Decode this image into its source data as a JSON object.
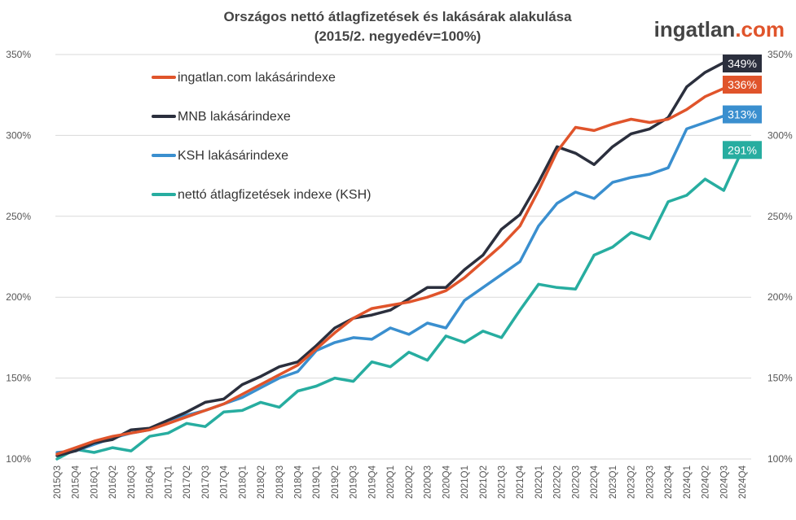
{
  "chart_data": {
    "type": "line",
    "title": "Országos nettó átlagfizetések és lakásárak alakulása",
    "subtitle": "(2015/2.  negyedév=100%)",
    "brand": {
      "name": "ingatlan",
      "suffix": ".com"
    },
    "colors": {
      "brand": "#444444",
      "accent": "#E0542B",
      "grid": "#d9d9d9"
    },
    "ylim": [
      100,
      350
    ],
    "yticks": [
      100,
      150,
      200,
      250,
      300,
      350
    ],
    "ytick_labels": [
      "100%",
      "150%",
      "200%",
      "250%",
      "300%",
      "350%"
    ],
    "categories": [
      "2015Q3",
      "2015Q4",
      "2016Q1",
      "2016Q2",
      "2016Q3",
      "2016Q4",
      "2017Q1",
      "2017Q2",
      "2017Q3",
      "2017Q4",
      "2018Q1",
      "2018Q2",
      "2018Q3",
      "2018Q4",
      "2019Q1",
      "2019Q2",
      "2019Q3",
      "2019Q4",
      "2020Q1",
      "2020Q2",
      "2020Q3",
      "2020Q4",
      "2021Q1",
      "2021Q2",
      "2021Q3",
      "2021Q4",
      "2022Q1",
      "2022Q2",
      "2022Q3",
      "2022Q4",
      "2023Q1",
      "2023Q2",
      "2023Q3",
      "2023Q4",
      "2024Q1",
      "2024Q2",
      "2024Q3",
      "2024Q4"
    ],
    "series": [
      {
        "name": "ingatlan.com lakásárindexe",
        "color": "#E0542B",
        "end_label": "336%",
        "values": [
          103,
          107,
          111,
          114,
          116,
          118,
          122,
          126,
          130,
          134,
          140,
          146,
          152,
          158,
          168,
          178,
          187,
          193,
          195,
          197,
          200,
          204,
          212,
          222,
          232,
          244,
          266,
          290,
          305,
          303,
          307,
          310,
          308,
          310,
          316,
          324,
          329,
          336
        ]
      },
      {
        "name": "MNB lakásárindexe",
        "color": "#2B2F3D",
        "end_label": "349%",
        "values": [
          102,
          105,
          110,
          112,
          118,
          119,
          124,
          129,
          135,
          137,
          146,
          151,
          157,
          160,
          170,
          181,
          187,
          189,
          192,
          199,
          206,
          206,
          217,
          226,
          242,
          251,
          271,
          293,
          289,
          282,
          293,
          301,
          304,
          311,
          330,
          339,
          345,
          349
        ]
      },
      {
        "name": "KSH lakásárindexe",
        "color": "#3A8FCF",
        "end_label": "313%",
        "values": [
          104,
          105,
          109,
          113,
          116,
          118,
          124,
          127,
          130,
          134,
          138,
          144,
          150,
          154,
          167,
          172,
          175,
          174,
          181,
          177,
          184,
          181,
          198,
          206,
          214,
          222,
          244,
          258,
          265,
          261,
          271,
          274,
          276,
          280,
          304,
          308,
          312,
          313
        ]
      },
      {
        "name": "nettó átlagfizetések indexe (KSH)",
        "color": "#27ADA0",
        "end_label": "291%",
        "values": [
          100,
          106,
          104,
          107,
          105,
          114,
          116,
          122,
          120,
          129,
          130,
          135,
          132,
          142,
          145,
          150,
          148,
          160,
          157,
          166,
          161,
          176,
          172,
          179,
          175,
          192,
          208,
          206,
          205,
          226,
          231,
          240,
          236,
          259,
          263,
          273,
          266,
          291
        ]
      }
    ]
  }
}
